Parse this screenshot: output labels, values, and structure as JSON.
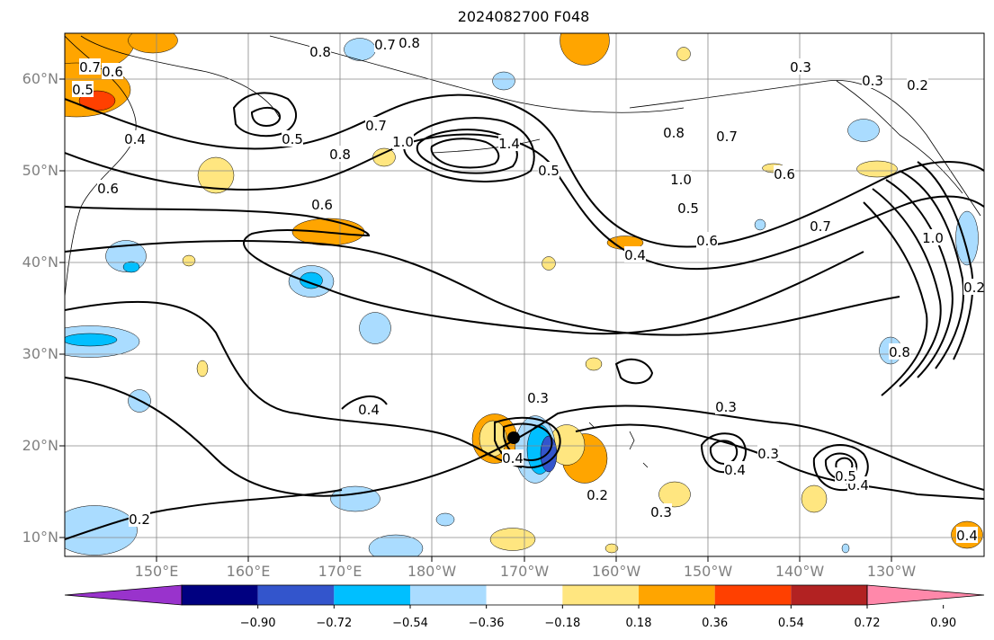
{
  "title": "2024082700 F048",
  "lat_labels": [
    "60°N",
    "50°N",
    "40°N",
    "30°N",
    "20°N",
    "10°N"
  ],
  "lon_labels": [
    "150°E",
    "160°E",
    "170°E",
    "180°W",
    "170°W",
    "160°W",
    "150°W",
    "140°W",
    "130°W"
  ],
  "contour_labels": [
    "0.7",
    "0.6",
    "0.5",
    "0.8",
    "0.7",
    "0.8",
    "0.7",
    "0.5",
    "0.8",
    "1.0",
    "1.4",
    "0.5",
    "0.8",
    "0.7",
    "0.6",
    "1.0",
    "0.5",
    "0.6",
    "0.4",
    "0.3",
    "0.3",
    "0.2",
    "0.4",
    "1.0",
    "0.7",
    "0.8",
    "0.6",
    "0.4",
    "0.6",
    "0.4",
    "0.3",
    "0.2",
    "0.4",
    "0.3",
    "0.2",
    "0.3",
    "0.4",
    "0.3",
    "0.5",
    "0.4",
    "0.2"
  ],
  "colorbar": {
    "ticks": [
      "−0.90",
      "−0.72",
      "−0.54",
      "−0.36",
      "−0.18",
      "0.18",
      "0.36",
      "0.54",
      "0.72",
      "0.90"
    ],
    "colors": [
      "#9933cc",
      "#000080",
      "#3355cc",
      "#00bfff",
      "#aadcff",
      "#ffffff",
      "#ffe680",
      "#ffa500",
      "#ff4000",
      "#b22222",
      "#ff88aa"
    ]
  },
  "grid": true
}
